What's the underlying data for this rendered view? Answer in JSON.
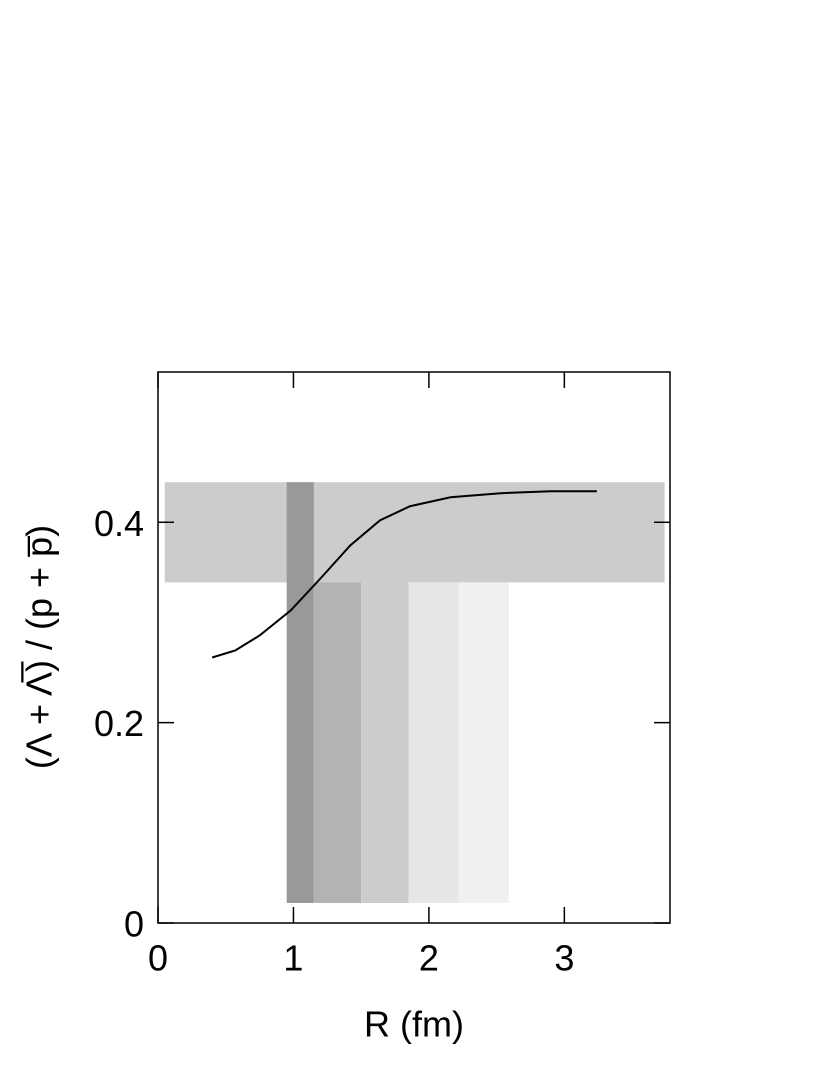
{
  "chart_data": {
    "type": "line",
    "xlabel": "R (fm)",
    "ylabel": "(Λ + Λ̅) / (p + p̅)",
    "xlim": [
      0,
      3.78
    ],
    "ylim": [
      0,
      0.55
    ],
    "xticks": [
      0,
      1,
      2,
      3
    ],
    "yticks": [
      0,
      0.2,
      0.4
    ],
    "x": [
      0.4,
      0.57,
      0.75,
      0.98,
      1.2,
      1.42,
      1.64,
      1.86,
      2.16,
      2.53,
      2.9,
      3.24
    ],
    "series": [
      {
        "color": "#000000",
        "values": [
          0.265,
          0.272,
          0.287,
          0.312,
          0.344,
          0.377,
          0.402,
          0.416,
          0.425,
          0.429,
          0.431,
          0.431
        ]
      }
    ],
    "bands": [
      {
        "x0": 0.05,
        "x1": 3.74,
        "y0": 0.34,
        "y1": 0.44,
        "color": "#cccccc"
      },
      {
        "x0": 1.15,
        "x1": 1.5,
        "y0": 0.02,
        "y1": 0.34,
        "color": "#b3b3b3"
      },
      {
        "x0": 1.5,
        "x1": 1.85,
        "y0": 0.02,
        "y1": 0.34,
        "color": "#cccccc"
      },
      {
        "x0": 1.85,
        "x1": 2.22,
        "y0": 0.02,
        "y1": 0.34,
        "color": "#e6e6e6"
      },
      {
        "x0": 2.22,
        "x1": 2.59,
        "y0": 0.02,
        "y1": 0.34,
        "color": "#f0f0f0"
      },
      {
        "x0": 0.95,
        "x1": 1.15,
        "y0": 0.02,
        "y1": 0.44,
        "color": "#999999"
      }
    ]
  }
}
